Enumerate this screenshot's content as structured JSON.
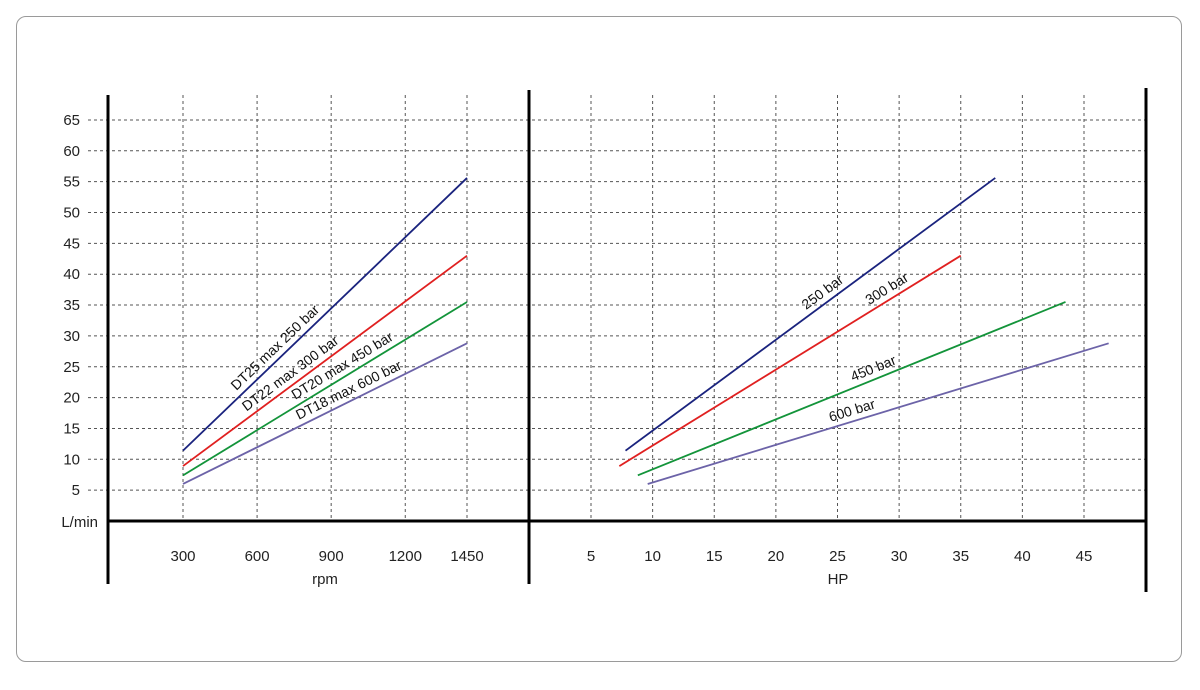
{
  "chart_data": [
    {
      "type": "line",
      "xlabel": "rpm",
      "ylabel": "L/min",
      "x_ticks": [
        "300",
        "600",
        "900",
        "1200",
        "1450"
      ],
      "y_ticks": [
        "5",
        "10",
        "15",
        "20",
        "25",
        "30",
        "35",
        "40",
        "45",
        "50",
        "55",
        "60",
        "65"
      ],
      "xlim": [
        0,
        1700
      ],
      "ylim": [
        0,
        70
      ],
      "grid": true,
      "series": [
        {
          "name": "DT25 max 250 bar",
          "color": "#1a237e",
          "x": [
            300,
            1450
          ],
          "y": [
            11.4,
            55.6
          ]
        },
        {
          "name": "DT22 max 300 bar",
          "color": "#e02020",
          "x": [
            300,
            1450
          ],
          "y": [
            8.9,
            43.0
          ]
        },
        {
          "name": "DT20 max 450 bar",
          "color": "#13943a",
          "x": [
            300,
            1450
          ],
          "y": [
            7.4,
            35.5
          ]
        },
        {
          "name": "DT18 max 600 bar",
          "color": "#6c63a8",
          "x": [
            300,
            1450
          ],
          "y": [
            6.0,
            28.8
          ]
        }
      ]
    },
    {
      "type": "line",
      "xlabel": "HP",
      "ylabel": "",
      "x_ticks": [
        "5",
        "10",
        "15",
        "20",
        "25",
        "30",
        "35",
        "40",
        "45"
      ],
      "xlim": [
        0,
        50
      ],
      "ylim": [
        0,
        70
      ],
      "grid": true,
      "series": [
        {
          "name": "250 bar",
          "color": "#1a237e",
          "x": [
            7.8,
            37.8
          ],
          "y": [
            11.4,
            55.6
          ]
        },
        {
          "name": "300 bar",
          "color": "#e02020",
          "x": [
            7.3,
            35.0
          ],
          "y": [
            8.9,
            43.0
          ]
        },
        {
          "name": "450 bar",
          "color": "#13943a",
          "x": [
            8.8,
            43.5
          ],
          "y": [
            7.4,
            35.5
          ]
        },
        {
          "name": "600 bar",
          "color": "#6c63a8",
          "x": [
            9.6,
            47.0
          ],
          "y": [
            6.0,
            28.8
          ]
        }
      ]
    }
  ]
}
